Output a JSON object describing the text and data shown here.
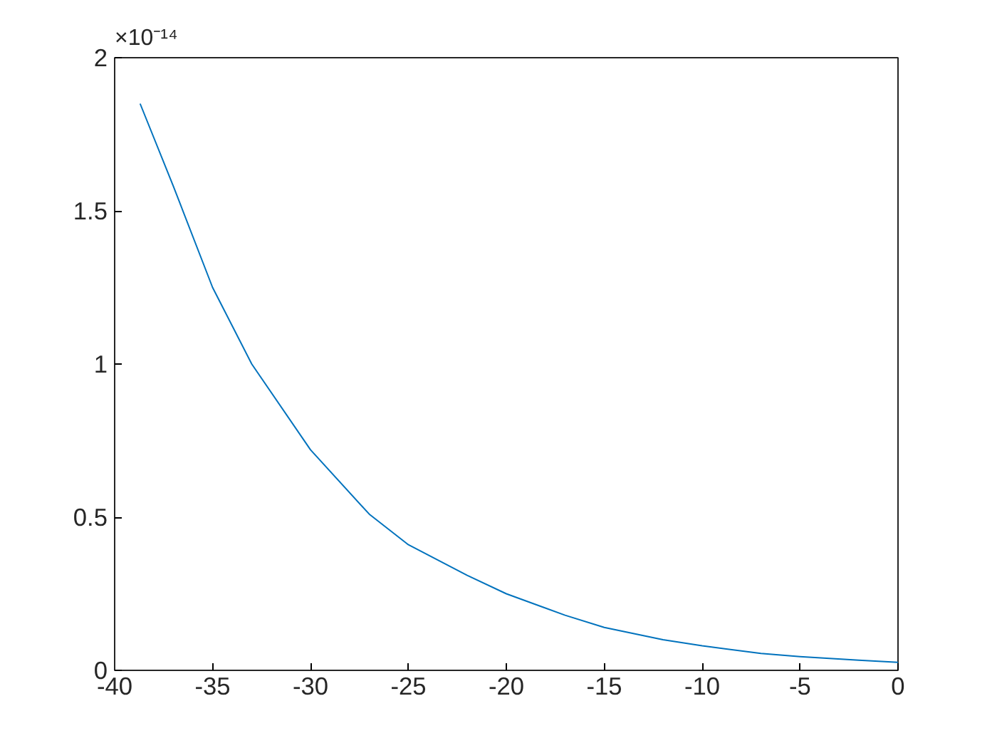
{
  "chart_data": {
    "type": "line",
    "x": [
      -38.7,
      -37,
      -35,
      -33,
      -30,
      -27,
      -25,
      -22,
      -20,
      -17,
      -15,
      -12,
      -10,
      -7,
      -5,
      -2,
      0
    ],
    "series": [
      {
        "color": "#0072bd",
        "values": [
          1.85,
          1.58,
          1.25,
          1.0,
          0.72,
          0.51,
          0.41,
          0.31,
          0.25,
          0.18,
          0.14,
          0.1,
          0.08,
          0.055,
          0.045,
          0.033,
          0.026
        ]
      }
    ],
    "xlim": [
      -40,
      0
    ],
    "xticks": [
      -40,
      -35,
      -30,
      -25,
      -20,
      -15,
      -10,
      -5,
      0
    ],
    "ylim": [
      0,
      2
    ],
    "yticks": [
      0,
      0.5,
      1,
      1.5,
      2
    ],
    "annotations": [
      "×10⁻¹⁴"
    ],
    "grid": false,
    "line_style": "solid",
    "marker": "none"
  }
}
